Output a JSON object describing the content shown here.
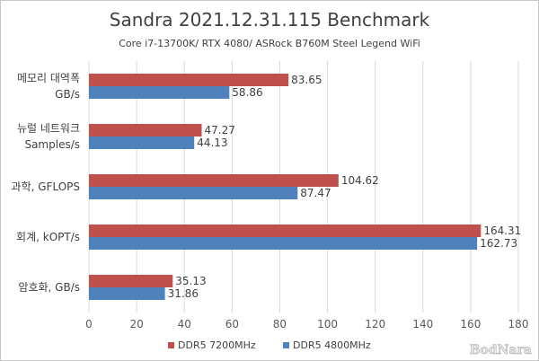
{
  "chart_data": {
    "type": "bar",
    "orientation": "horizontal",
    "title": "Sandra 2021.12.31.115 Benchmark",
    "subtitle": "Core i7-13700K/ RTX 4080/ ASRock B760M Steel Legend WiFi",
    "categories": [
      [
        "메모리 대역폭",
        "GB/s"
      ],
      [
        "뉴럴 네트워크",
        "Samples/s"
      ],
      [
        "과학, GFLOPS"
      ],
      [
        "회계, kOPT/s"
      ],
      [
        "암호화, GB/s"
      ]
    ],
    "series": [
      {
        "name": "DDR5 7200MHz",
        "color": "#c0504d",
        "values": [
          83.65,
          47.27,
          104.62,
          164.31,
          35.13
        ]
      },
      {
        "name": "DDR5 4800MHz",
        "color": "#4f81bd",
        "values": [
          58.86,
          44.13,
          87.47,
          162.73,
          31.86
        ]
      }
    ],
    "xlim": [
      0,
      180
    ],
    "xticks": [
      0,
      20,
      40,
      60,
      80,
      100,
      120,
      140,
      160,
      180
    ],
    "grid": true,
    "legend_position": "bottom"
  },
  "watermark": "BodNara"
}
